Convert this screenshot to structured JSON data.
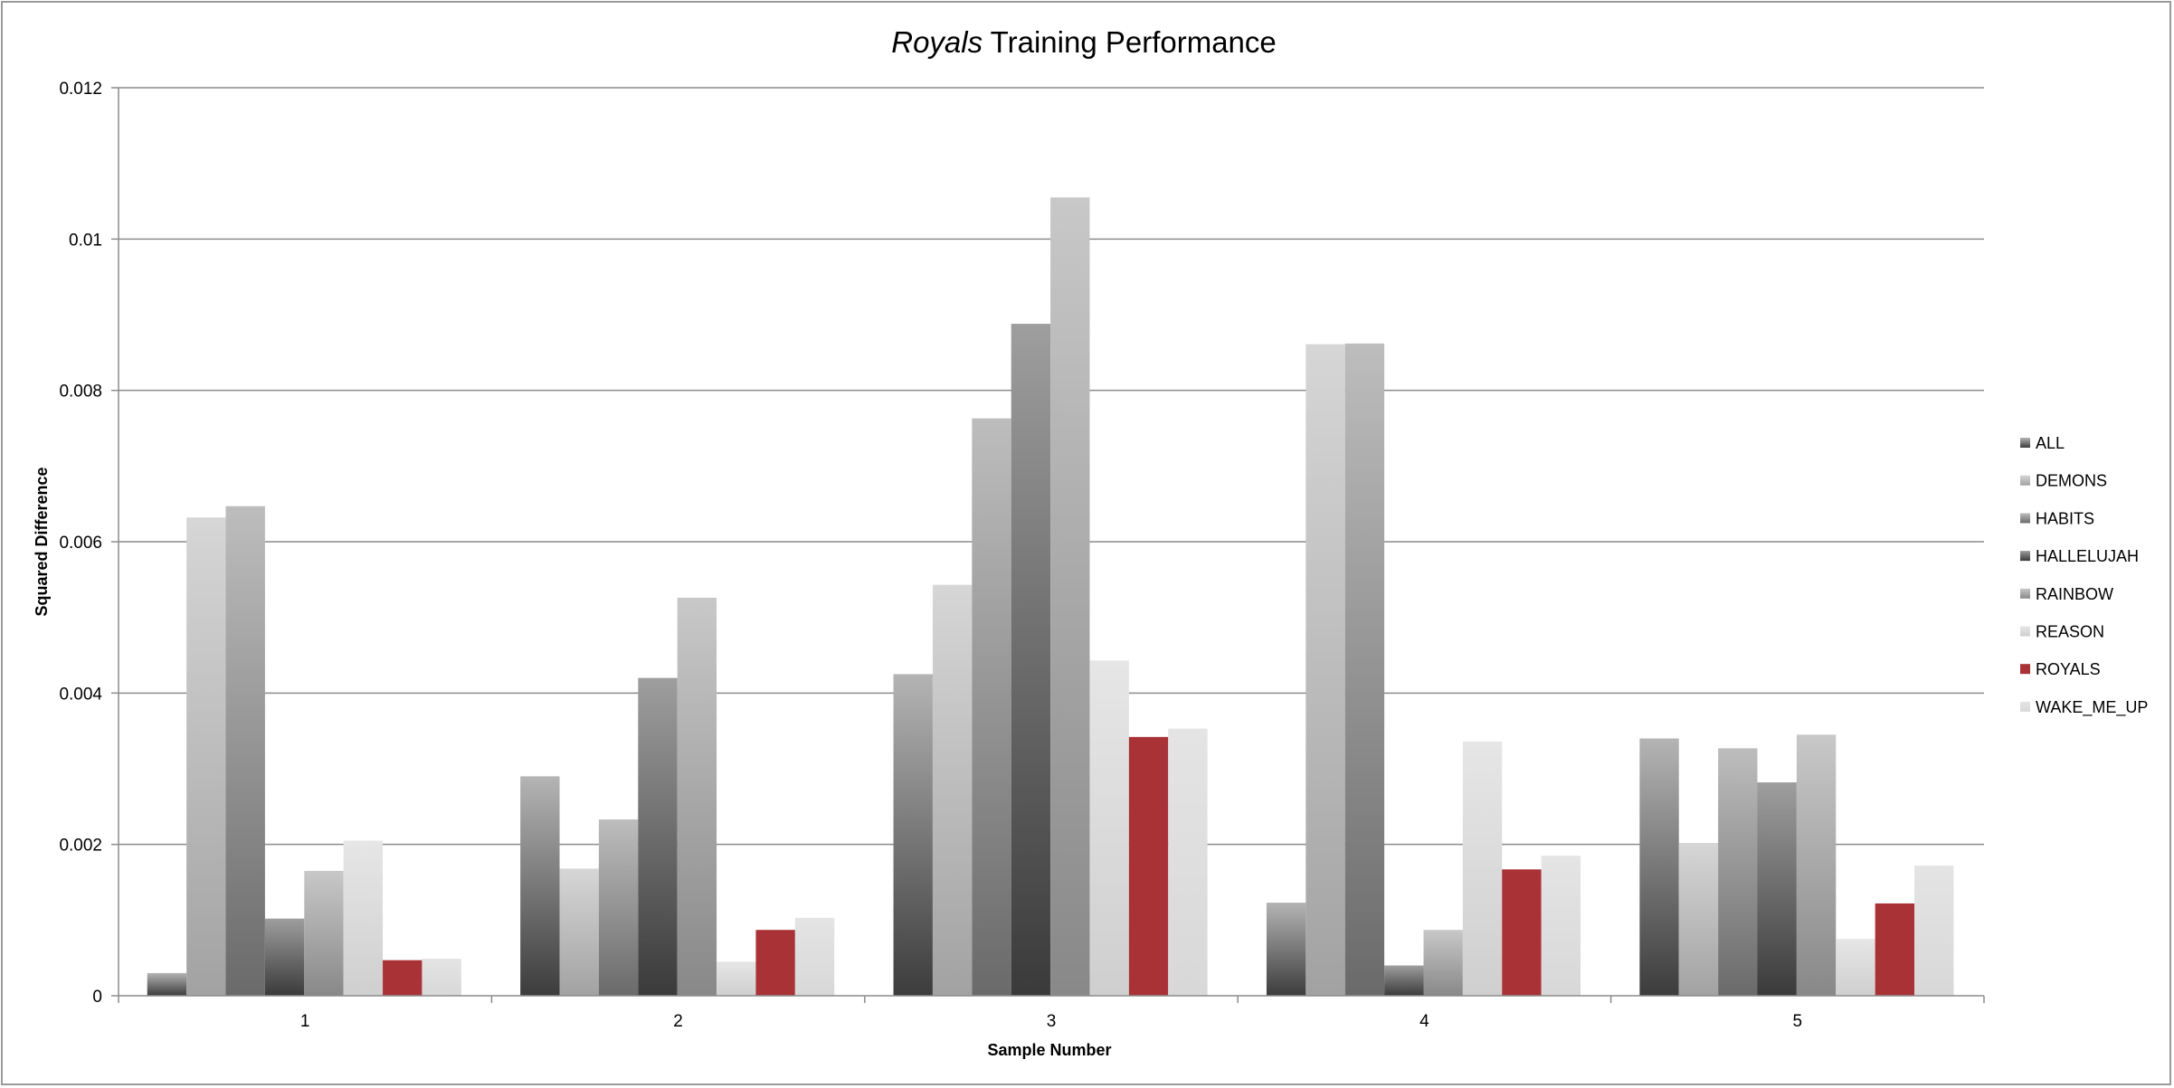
{
  "chart_data": {
    "type": "bar",
    "title_italic": "Royals",
    "title_rest": " Training Performance",
    "xlabel": "Sample Number",
    "ylabel": "Squared Difference",
    "categories": [
      "1",
      "2",
      "3",
      "4",
      "5"
    ],
    "ylim": [
      0,
      0.012
    ],
    "yticks": [
      "0",
      "0.002",
      "0.004",
      "0.006",
      "0.008",
      "0.01",
      "0.012"
    ],
    "grid": true,
    "legend_position": "right",
    "series": [
      {
        "name": "ALL",
        "values": [
          0.0003,
          0.0029,
          0.00425,
          0.00123,
          0.0034
        ],
        "color_top": "#b4b4b4",
        "color_bottom": "#3c3c3c"
      },
      {
        "name": "DEMONS",
        "values": [
          0.00632,
          0.00168,
          0.00543,
          0.00861,
          0.00202
        ],
        "color_top": "#d6d6d6",
        "color_bottom": "#a2a2a2"
      },
      {
        "name": "HABITS",
        "values": [
          0.00647,
          0.00233,
          0.00763,
          0.00862,
          0.00327
        ],
        "color_top": "#bdbdbd",
        "color_bottom": "#6a6a6a"
      },
      {
        "name": "HALLELUJAH",
        "values": [
          0.00102,
          0.0042,
          0.00888,
          0.0004,
          0.00282
        ],
        "color_top": "#9e9e9e",
        "color_bottom": "#3a3a3a"
      },
      {
        "name": "RAINBOW",
        "values": [
          0.00165,
          0.00526,
          0.01055,
          0.00087,
          0.00345
        ],
        "color_top": "#c8c8c8",
        "color_bottom": "#888888"
      },
      {
        "name": "REASON",
        "values": [
          0.00205,
          0.00045,
          0.00443,
          0.00336,
          0.00075
        ],
        "color_top": "#e6e6e6",
        "color_bottom": "#cfcfcf"
      },
      {
        "name": "ROYALS",
        "values": [
          0.00047,
          0.00087,
          0.00342,
          0.00167,
          0.00122
        ],
        "color_top": "#a83236",
        "color_bottom": "#a83236"
      },
      {
        "name": "WAKE_ME_UP",
        "values": [
          0.00049,
          0.00103,
          0.00353,
          0.00185,
          0.00172
        ],
        "color_top": "#e4e4e4",
        "color_bottom": "#d8d8d8"
      }
    ]
  }
}
